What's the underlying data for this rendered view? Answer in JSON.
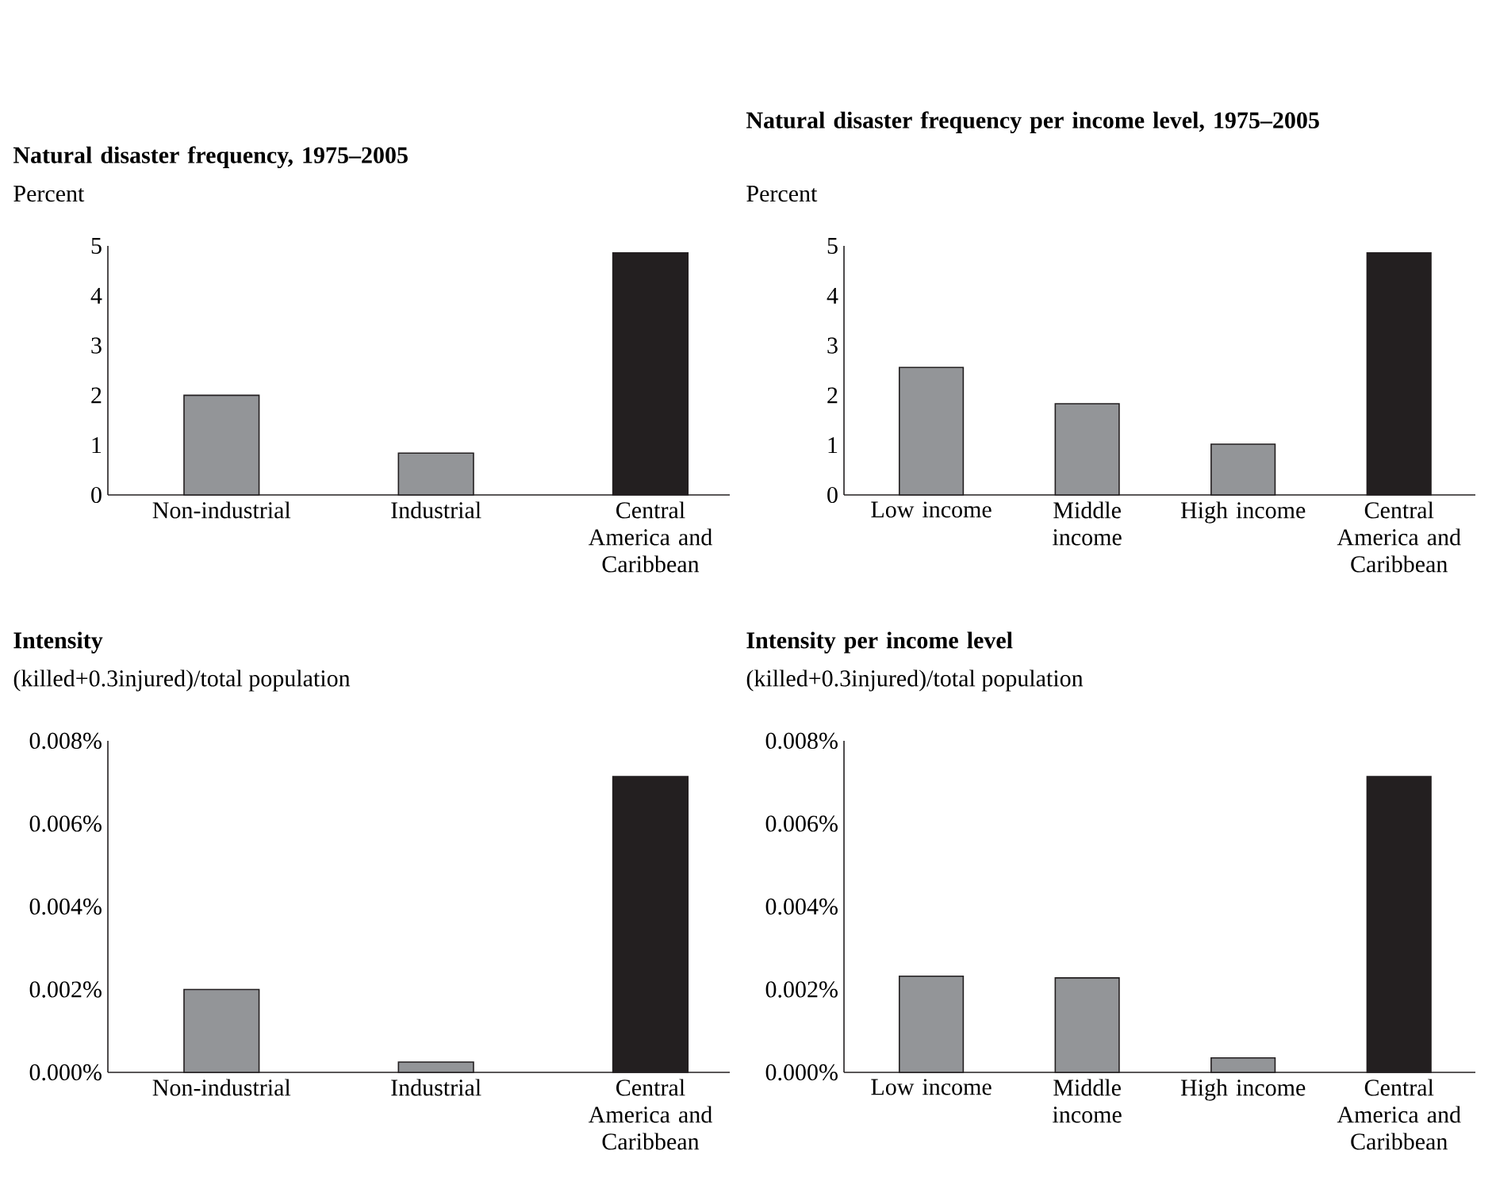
{
  "chart_data": [
    {
      "type": "bar",
      "title": "Natural disaster frequency, 1975–2005",
      "subtitle": "Percent",
      "categories": [
        "Non-industrial",
        "Industrial",
        "Central America and Caribbean"
      ],
      "values": [
        2.0,
        0.84,
        4.86
      ],
      "colors": [
        "#939598",
        "#939598",
        "#231f20"
      ],
      "ylim": [
        0,
        5
      ],
      "yticks": [
        0,
        1,
        2,
        3,
        4,
        5
      ]
    },
    {
      "type": "bar",
      "title": "Natural disaster frequency per income level, 1975–2005",
      "subtitle": "Percent",
      "categories": [
        "Low income",
        "Middle income",
        "High income",
        "Central America and Caribbean"
      ],
      "values": [
        2.56,
        1.83,
        1.02,
        4.86
      ],
      "colors": [
        "#939598",
        "#939598",
        "#939598",
        "#231f20"
      ],
      "ylim": [
        0,
        5
      ],
      "yticks": [
        0,
        1,
        2,
        3,
        4,
        5
      ]
    },
    {
      "type": "bar",
      "title": "Intensity",
      "subtitle": "(killed+0.3injured)/total population",
      "categories": [
        "Non-industrial",
        "Industrial",
        "Central America and Caribbean"
      ],
      "values": [
        0.002,
        0.00025,
        0.00714
      ],
      "colors": [
        "#939598",
        "#939598",
        "#231f20"
      ],
      "ylim": [
        0,
        0.008
      ],
      "yticks": [
        {
          "value": 0,
          "label": "0.000%"
        },
        {
          "value": 0.002,
          "label": "0.002%"
        },
        {
          "value": 0.004,
          "label": "0.004%"
        },
        {
          "value": 0.006,
          "label": "0.006%"
        },
        {
          "value": 0.008,
          "label": "0.008%"
        }
      ]
    },
    {
      "type": "bar",
      "title": "Intensity per income level",
      "subtitle": "(killed+0.3injured)/total population",
      "categories": [
        "Low income",
        "Middle income",
        "High income",
        "Central America and Caribbean"
      ],
      "values": [
        0.00232,
        0.00228,
        0.00035,
        0.00714
      ],
      "colors": [
        "#939598",
        "#939598",
        "#939598",
        "#231f20"
      ],
      "ylim": [
        0,
        0.008
      ],
      "yticks": [
        {
          "value": 0,
          "label": "0.000%"
        },
        {
          "value": 0.002,
          "label": "0.002%"
        },
        {
          "value": 0.004,
          "label": "0.004%"
        },
        {
          "value": 0.006,
          "label": "0.006%"
        },
        {
          "value": 0.008,
          "label": "0.008%"
        }
      ]
    }
  ]
}
